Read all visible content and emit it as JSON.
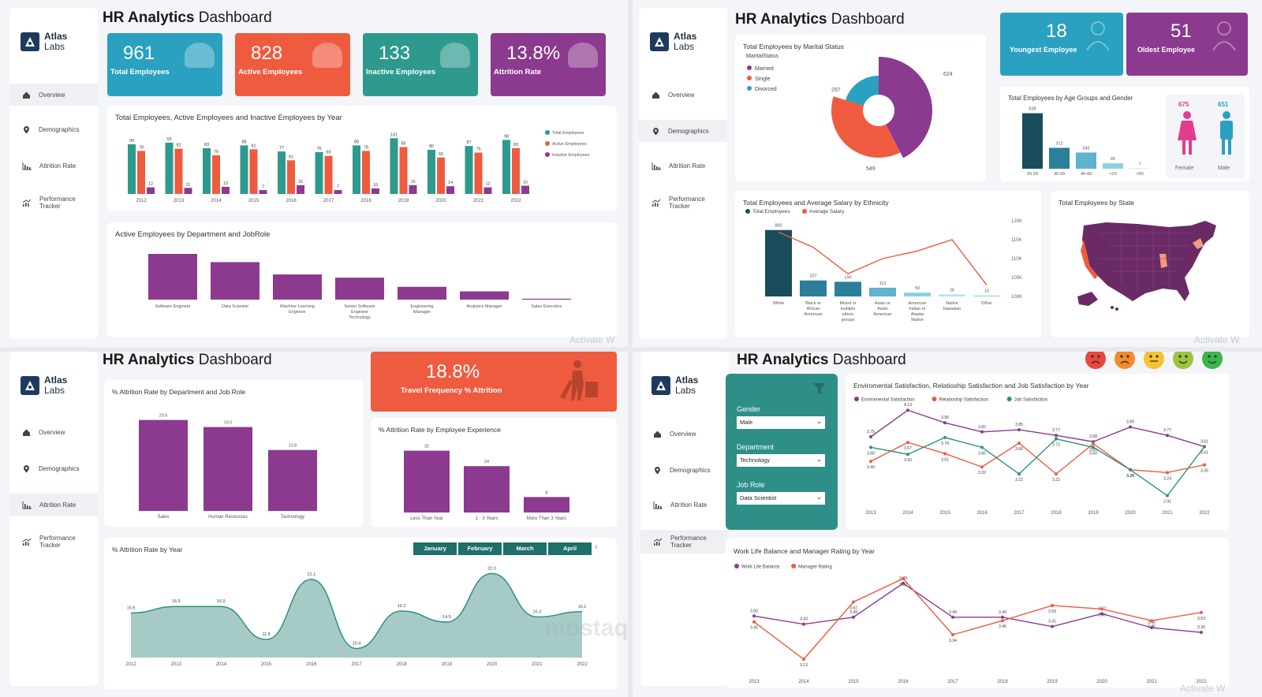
{
  "dashboard": {
    "title_bold": "HR Analytics",
    "title_rest": "Dashboard"
  },
  "brand": {
    "name": "Atlas",
    "sub": "Labs"
  },
  "nav": [
    "Overview",
    "Demographics",
    "Attrition Rate",
    "Performance",
    "Tracker"
  ],
  "watermark": {
    "activate": "Activate W",
    "mostaql": "mostaql.com"
  },
  "colors": {
    "teal": "#2aa1b7",
    "orange": "#ef5b3f",
    "green": "#2e8f88",
    "purple": "#8b3a8f",
    "dark": "#1a4d5c"
  },
  "overview": {
    "kpis": [
      {
        "value": "961",
        "label": "Total Employees",
        "color": "#2aa1c0",
        "icon": "people-icon"
      },
      {
        "value": "828",
        "label": "Active Employees",
        "color": "#ef5b3f",
        "icon": "person-icon"
      },
      {
        "value": "133",
        "label": "Inactive Employees",
        "color": "#2e9a8e",
        "icon": "person-x-icon"
      },
      {
        "value": "13.8%",
        "label": "Attrition Rate",
        "color": "#8b3a8f",
        "icon": "bar-chart-icon"
      }
    ],
    "chart_data": {
      "type": "bar",
      "title": "Total Employees, Active Employees and Inactive Employees by Year",
      "categories": [
        "2012",
        "2013",
        "2014",
        "2015",
        "2016",
        "2017",
        "2018",
        "2019",
        "2020",
        "2021",
        "2022"
      ],
      "series": [
        {
          "name": "Total Employees",
          "values": [
            90,
            93,
            83,
            88,
            77,
            76,
            88,
            101,
            80,
            87,
            98
          ]
        },
        {
          "name": "Active Employees",
          "values": [
            78,
            82,
            70,
            81,
            61,
            69,
            78,
            85,
            66,
            75,
            83
          ]
        },
        {
          "name": "Inactive Employees",
          "values": [
            12,
            11,
            13,
            7,
            16,
            7,
            10,
            16,
            14,
            12,
            15
          ]
        }
      ]
    },
    "dept_chart": {
      "type": "bar",
      "title": "Active Employees by Department and JobRole",
      "categories": [
        "Software Engineer",
        "Data Scientist",
        "Machine Learning Engineer",
        "Senior Software Engineer Technology",
        "Engineering Manager",
        "Analytics Manager",
        "Sales Executive"
      ],
      "values": [
        100,
        82,
        55,
        48,
        28,
        18,
        2
      ]
    }
  },
  "demographics": {
    "kpis": [
      {
        "value": "18",
        "label": "Youngest Employee",
        "color": "#2aa1c0"
      },
      {
        "value": "51",
        "label": "Oldest Employee",
        "color": "#8b3a8f"
      }
    ],
    "marital": {
      "type": "pie",
      "title": "Total Employees by Marital Status",
      "legend_title": "MaritalStatus",
      "categories": [
        "Married",
        "Single",
        "Divorced"
      ],
      "values": [
        624,
        549,
        297
      ]
    },
    "age_gender": {
      "type": "bar",
      "title": "Total Employees by Age Groups and Gender",
      "categories": [
        "20-29",
        "30-39",
        "40-49",
        "<20",
        ">50"
      ],
      "values": [
        828,
        312,
        242,
        81,
        7
      ],
      "female_value": "675",
      "male_value": "651",
      "female_label": "Female",
      "male_label": "Male"
    },
    "ethnicity": {
      "type": "bar",
      "title": "Total Employees and Average Salary by Ethnicity",
      "legend": [
        "Total Employees",
        "Average Salary"
      ],
      "categories": [
        "White",
        "Black or African American",
        "Mixed or multiple ethnic groups",
        "Asian or Asian American",
        "American Indian or Alaska Native",
        "Native Hawaiian",
        "Other"
      ],
      "values": [
        860,
        207,
        190,
        113,
        50,
        26,
        16
      ],
      "salary": [
        117,
        113,
        106,
        110,
        112,
        115,
        103
      ],
      "salary_ticks": [
        "120K",
        "115K",
        "110K",
        "105K",
        "100K"
      ]
    },
    "state_map_title": "Total Employees by State"
  },
  "attrition": {
    "travel": {
      "value": "18.8%",
      "label": "Travel Frequency % Attrition"
    },
    "dept": {
      "type": "bar",
      "title": "% Attrition Rate by Department and Job Role",
      "categories": [
        "Sales",
        "Human Resources",
        "Technology"
      ],
      "values": [
        20.6,
        19.0,
        13.8
      ]
    },
    "experience": {
      "type": "bar",
      "title": "% Attrition Rate by Employee Experience",
      "categories": [
        "Less Than Year",
        "1 - 3 Years",
        "More Than 3 Years"
      ],
      "values": [
        32,
        24,
        8
      ]
    },
    "year": {
      "type": "area",
      "title": "% Attrition Rate by Year",
      "categories": [
        "2012",
        "2013",
        "2014",
        "2015",
        "2016",
        "2017",
        "2018",
        "2019",
        "2020",
        "2021",
        "2022"
      ],
      "values": [
        15.9,
        16.9,
        16.9,
        11.8,
        21.1,
        10.4,
        16.2,
        14.5,
        22.0,
        15.3,
        16.1
      ]
    },
    "months": [
      "January",
      "February",
      "March",
      "April"
    ]
  },
  "performance": {
    "filters": [
      {
        "label": "Gender",
        "value": "Male"
      },
      {
        "label": "Department",
        "value": "Technology"
      },
      {
        "label": "Job Role",
        "value": "Data Scientist"
      }
    ],
    "satisfaction": {
      "type": "line",
      "title": "Enviromental Satisfaction, Relatioship Satisfaction and Job Satisfaction by Year",
      "categories": [
        "2013",
        "2014",
        "2015",
        "2016",
        "2017",
        "2018",
        "2019",
        "2020",
        "2021",
        "2022"
      ],
      "series": [
        {
          "name": "Enviromental Satisfaction",
          "values": [
            3.75,
            4.13,
            3.95,
            3.82,
            3.85,
            3.77,
            3.68,
            3.89,
            3.77,
            3.61
          ]
        },
        {
          "name": "Relatioship Satisfaction",
          "values": [
            3.4,
            3.67,
            3.51,
            3.32,
            3.66,
            3.22,
            3.65,
            3.28,
            3.24,
            3.35
          ]
        },
        {
          "name": "Job Satisfaction",
          "values": [
            3.6,
            3.5,
            3.74,
            3.6,
            3.22,
            3.72,
            3.6,
            3.28,
            2.91,
            3.61
          ]
        }
      ]
    },
    "worklife": {
      "type": "line",
      "title": "Work Life Balance and Manager Rating by Year",
      "categories": [
        "2013",
        "2014",
        "2015",
        "2016",
        "2017",
        "2018",
        "2019",
        "2020",
        "2021",
        "2022"
      ],
      "series": [
        {
          "name": "Work Life Balance",
          "values": [
            3.5,
            3.43,
            3.49,
            3.78,
            3.49,
            3.49,
            3.41,
            3.52,
            3.4,
            3.36
          ]
        },
        {
          "name": "Manager Rating",
          "values": [
            3.45,
            3.13,
            3.62,
            3.82,
            3.34,
            3.46,
            3.59,
            3.56,
            3.46,
            3.53
          ]
        }
      ]
    },
    "faces": [
      "#e8473c",
      "#f28a2e",
      "#f5c32e",
      "#9bc53d",
      "#3cb54a"
    ]
  }
}
